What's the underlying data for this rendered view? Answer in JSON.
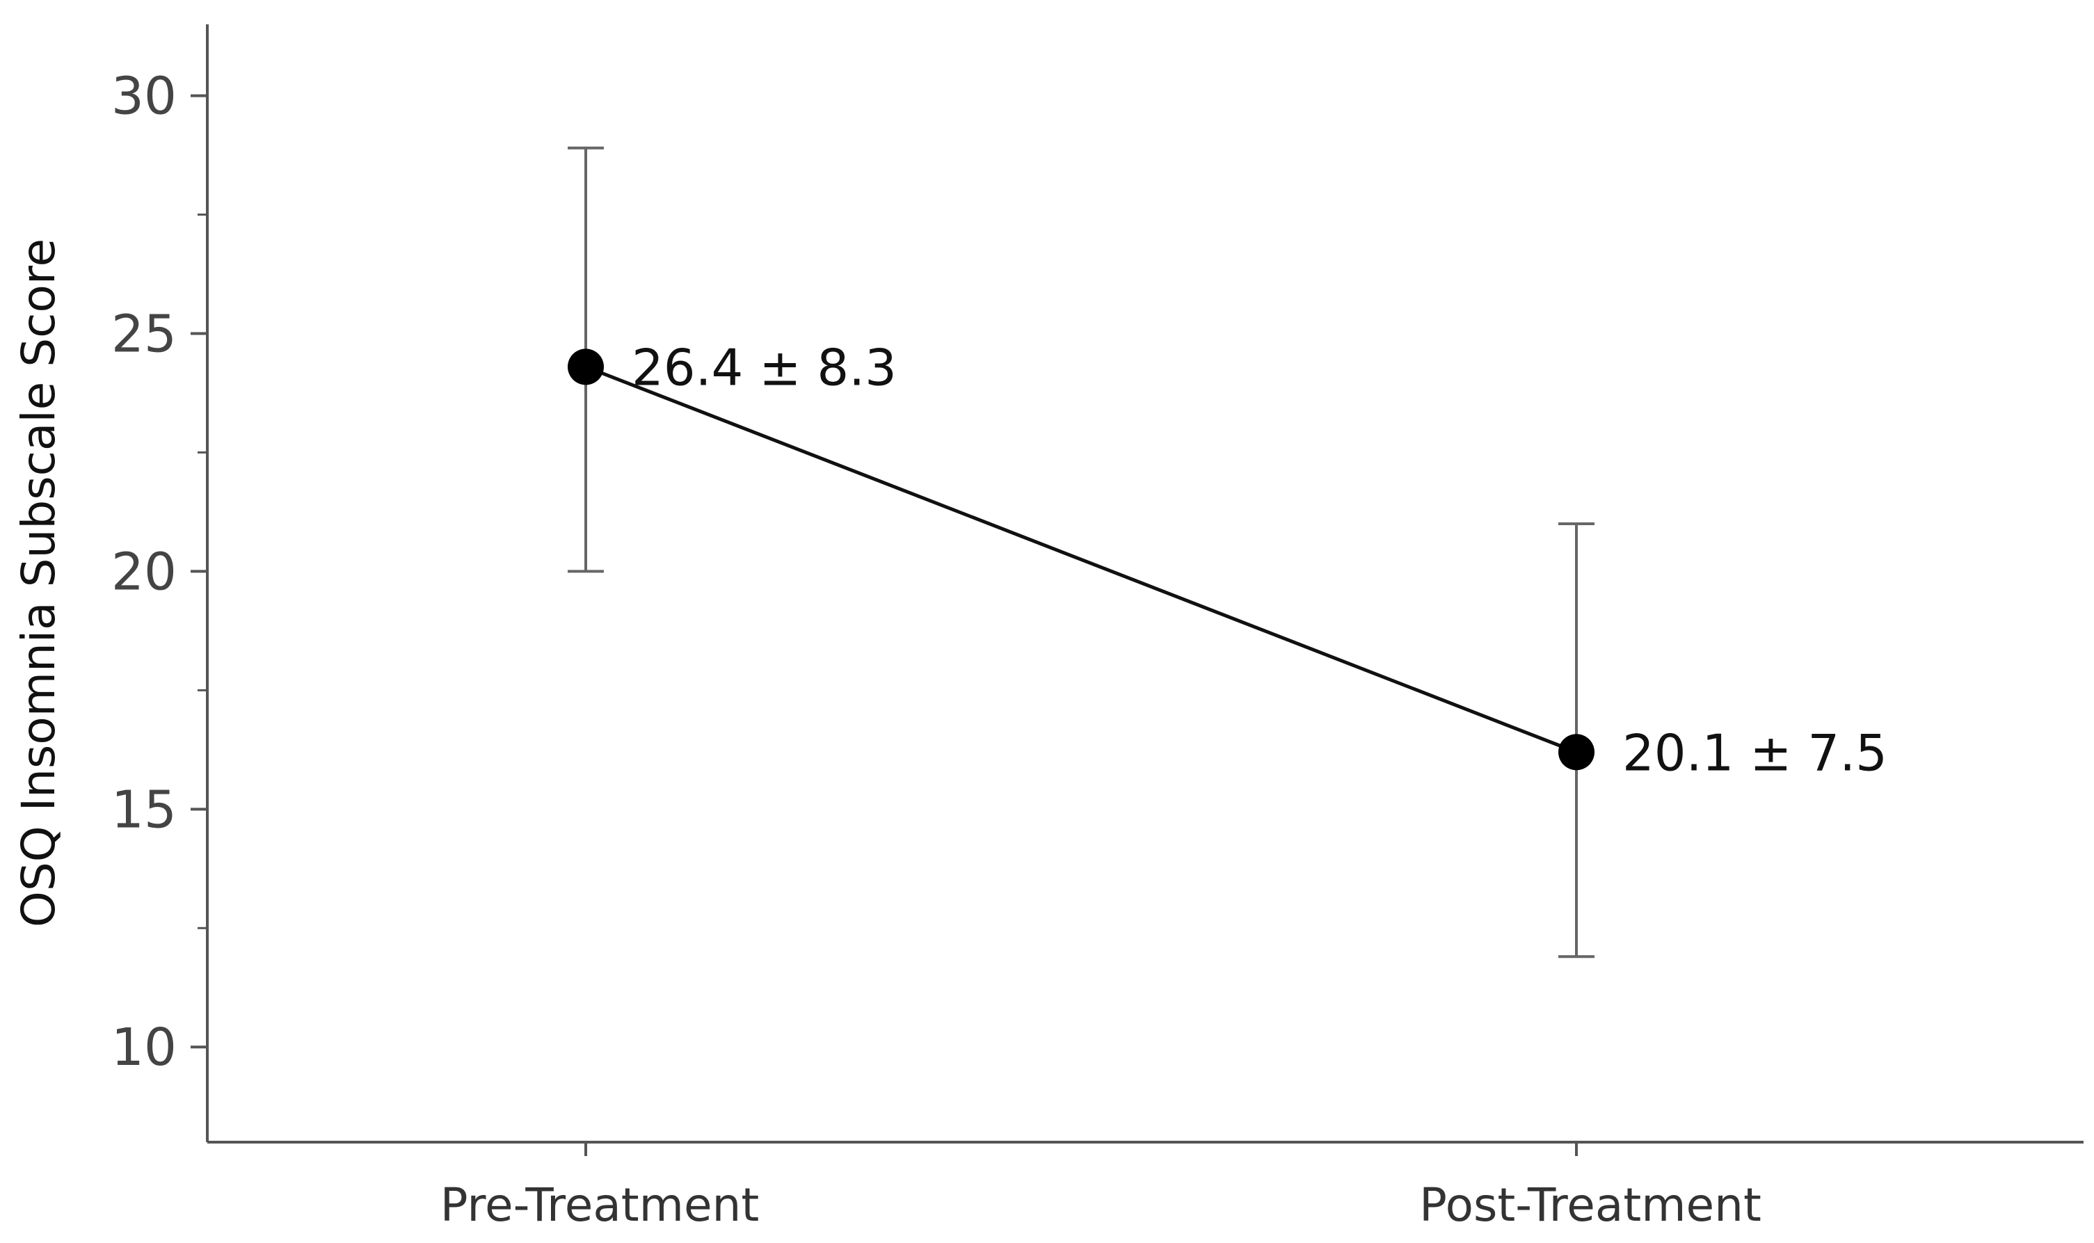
{
  "chart_data": {
    "type": "line",
    "title": "",
    "xlabel": "",
    "ylabel": "OSQ Insomnia Subscale Score",
    "categories": [
      "Pre-Treatment",
      "Post-Treatment"
    ],
    "ylim": [
      8,
      31.5
    ],
    "y_major_ticks": [
      10,
      15,
      20,
      25,
      30
    ],
    "y_minor_ticks": [
      12.5,
      17.5,
      22.5,
      27.5
    ],
    "series": [
      {
        "values": [
          24.3,
          16.2
        ],
        "error_low": [
          20.0,
          11.9
        ],
        "error_high": [
          28.9,
          21.0
        ],
        "labels": [
          "26.4 ± 8.3",
          "20.1 ± 7.5"
        ]
      }
    ],
    "grid": false,
    "legend": "none"
  }
}
